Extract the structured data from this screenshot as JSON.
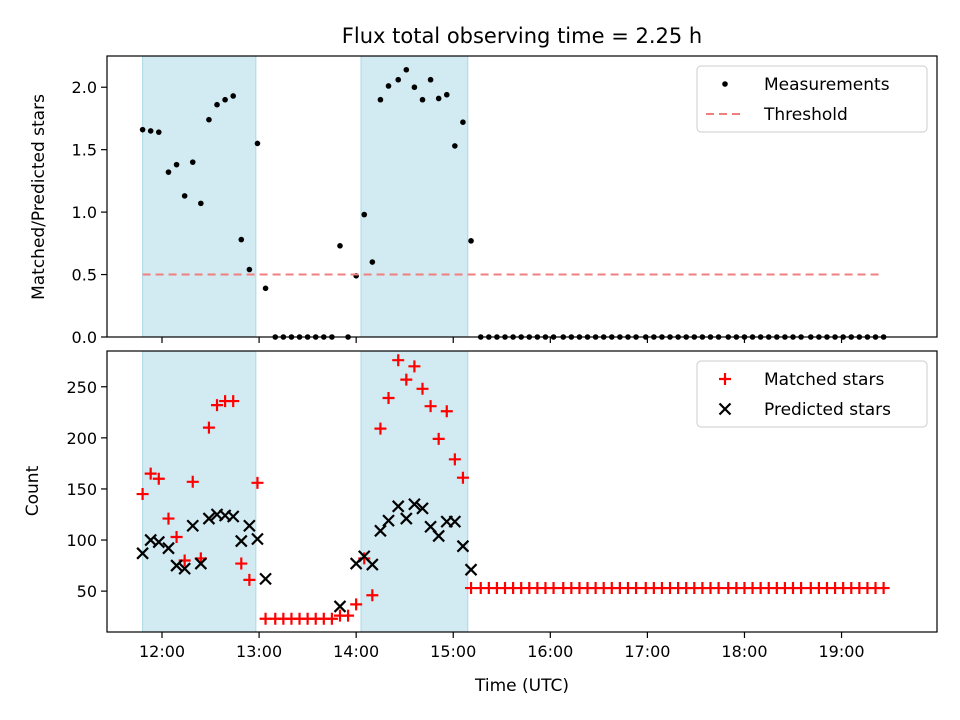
{
  "chart_data": [
    {
      "type": "scatter",
      "title": "Flux total observing time = 2.25 h",
      "xlabel": "",
      "ylabel": "Matched/Predicted stars",
      "ylim": [
        0,
        2.25
      ],
      "yticks": [
        {
          "v": 0.0,
          "label": "0.0"
        },
        {
          "v": 0.5,
          "label": "0.5"
        },
        {
          "v": 1.0,
          "label": "1.0"
        },
        {
          "v": 1.5,
          "label": "1.5"
        },
        {
          "v": 2.0,
          "label": "2.0"
        }
      ],
      "legend_position": "top-right",
      "colors": {
        "measurements": "#000000",
        "threshold": "#f08080",
        "shade": "#add8e6"
      },
      "series": [
        {
          "name": "Measurements",
          "marker": "dot",
          "points": [
            [
              "11:48",
              1.66
            ],
            [
              "11:53",
              1.65
            ],
            [
              "11:58",
              1.64
            ],
            [
              "12:04",
              1.32
            ],
            [
              "12:09",
              1.38
            ],
            [
              "12:14",
              1.13
            ],
            [
              "12:19",
              1.4
            ],
            [
              "12:24",
              1.07
            ],
            [
              "12:29",
              1.74
            ],
            [
              "12:34",
              1.86
            ],
            [
              "12:39",
              1.9
            ],
            [
              "12:44",
              1.93
            ],
            [
              "12:49",
              0.78
            ],
            [
              "12:54",
              0.54
            ],
            [
              "12:59",
              1.55
            ],
            [
              "13:04",
              0.39
            ],
            [
              "13:10",
              0.0
            ],
            [
              "13:15",
              0.0
            ],
            [
              "13:20",
              0.0
            ],
            [
              "13:25",
              0.0
            ],
            [
              "13:30",
              0.0
            ],
            [
              "13:35",
              0.0
            ],
            [
              "13:40",
              0.0
            ],
            [
              "13:45",
              0.0
            ],
            [
              "13:50",
              0.73
            ],
            [
              "13:55",
              0.0
            ],
            [
              "14:00",
              0.49
            ],
            [
              "14:05",
              0.98
            ],
            [
              "14:10",
              0.6
            ],
            [
              "14:15",
              1.9
            ],
            [
              "14:20",
              2.01
            ],
            [
              "14:26",
              2.06
            ],
            [
              "14:31",
              2.14
            ],
            [
              "14:36",
              2.0
            ],
            [
              "14:41",
              1.9
            ],
            [
              "14:46",
              2.06
            ],
            [
              "14:51",
              1.91
            ],
            [
              "14:56",
              1.94
            ],
            [
              "15:01",
              1.53
            ],
            [
              "15:06",
              1.72
            ],
            [
              "15:11",
              0.77
            ],
            [
              "15:17",
              0.0
            ],
            [
              "15:22",
              0.0
            ],
            [
              "15:27",
              0.0
            ],
            [
              "15:32",
              0.0
            ],
            [
              "15:37",
              0.0
            ],
            [
              "15:42",
              0.0
            ],
            [
              "15:47",
              0.0
            ],
            [
              "15:52",
              0.0
            ],
            [
              "15:57",
              0.0
            ],
            [
              "16:02",
              0.0
            ],
            [
              "16:08",
              0.0
            ],
            [
              "16:13",
              0.0
            ],
            [
              "16:18",
              0.0
            ],
            [
              "16:23",
              0.0
            ],
            [
              "16:28",
              0.0
            ],
            [
              "16:33",
              0.0
            ],
            [
              "16:38",
              0.0
            ],
            [
              "16:43",
              0.0
            ],
            [
              "16:48",
              0.0
            ],
            [
              "16:53",
              0.0
            ],
            [
              "16:59",
              0.0
            ],
            [
              "17:04",
              0.0
            ],
            [
              "17:09",
              0.0
            ],
            [
              "17:14",
              0.0
            ],
            [
              "17:19",
              0.0
            ],
            [
              "17:24",
              0.0
            ],
            [
              "17:29",
              0.0
            ],
            [
              "17:34",
              0.0
            ],
            [
              "17:39",
              0.0
            ],
            [
              "17:44",
              0.0
            ],
            [
              "17:50",
              0.0
            ],
            [
              "17:55",
              0.0
            ],
            [
              "18:00",
              0.0
            ],
            [
              "18:05",
              0.0
            ],
            [
              "18:10",
              0.0
            ],
            [
              "18:15",
              0.0
            ],
            [
              "18:20",
              0.0
            ],
            [
              "18:25",
              0.0
            ],
            [
              "18:30",
              0.0
            ],
            [
              "18:35",
              0.0
            ],
            [
              "18:41",
              0.0
            ],
            [
              "18:46",
              0.0
            ],
            [
              "18:51",
              0.0
            ],
            [
              "18:56",
              0.0
            ],
            [
              "19:01",
              0.0
            ],
            [
              "19:06",
              0.0
            ],
            [
              "19:11",
              0.0
            ],
            [
              "19:16",
              0.0
            ],
            [
              "19:21",
              0.0
            ],
            [
              "19:26",
              0.0
            ]
          ]
        },
        {
          "name": "Threshold",
          "marker": "dashed-line",
          "points": [
            [
              "11:48",
              0.5
            ],
            [
              "19:26",
              0.5
            ]
          ]
        }
      ],
      "shaded_intervals": [
        [
          "11:48",
          "12:58"
        ],
        [
          "14:03",
          "15:09"
        ]
      ]
    },
    {
      "type": "scatter",
      "title": "",
      "xlabel": "Time (UTC)",
      "ylabel": "Count",
      "ylim": [
        10,
        285
      ],
      "yticks": [
        {
          "v": 50,
          "label": "50"
        },
        {
          "v": 100,
          "label": "100"
        },
        {
          "v": 150,
          "label": "150"
        },
        {
          "v": 200,
          "label": "200"
        },
        {
          "v": 250,
          "label": "250"
        }
      ],
      "xlim": [
        "11:26",
        "19:59"
      ],
      "xticks": [
        "12:00",
        "13:00",
        "14:00",
        "15:00",
        "16:00",
        "17:00",
        "18:00",
        "19:00"
      ],
      "legend_position": "top-right",
      "colors": {
        "matched": "#ff0000",
        "predicted": "#000000",
        "shade": "#add8e6"
      },
      "series": [
        {
          "name": "Matched stars",
          "marker": "plus",
          "points": [
            [
              "11:48",
              145
            ],
            [
              "11:53",
              165
            ],
            [
              "11:58",
              160
            ],
            [
              "12:04",
              121
            ],
            [
              "12:09",
              103
            ],
            [
              "12:14",
              80
            ],
            [
              "12:19",
              157
            ],
            [
              "12:24",
              82
            ],
            [
              "12:29",
              210
            ],
            [
              "12:34",
              232
            ],
            [
              "12:39",
              236
            ],
            [
              "12:44",
              236
            ],
            [
              "12:49",
              77
            ],
            [
              "12:54",
              61
            ],
            [
              "12:59",
              156
            ],
            [
              "13:04",
              23
            ],
            [
              "13:10",
              23
            ],
            [
              "13:15",
              23
            ],
            [
              "13:20",
              23
            ],
            [
              "13:25",
              23
            ],
            [
              "13:30",
              23
            ],
            [
              "13:35",
              23
            ],
            [
              "13:40",
              23
            ],
            [
              "13:45",
              23
            ],
            [
              "13:50",
              26
            ],
            [
              "13:55",
              26
            ],
            [
              "14:00",
              37
            ],
            [
              "14:05",
              82
            ],
            [
              "14:10",
              46
            ],
            [
              "14:15",
              209
            ],
            [
              "14:20",
              239
            ],
            [
              "14:26",
              276
            ],
            [
              "14:31",
              257
            ],
            [
              "14:36",
              270
            ],
            [
              "14:41",
              248
            ],
            [
              "14:46",
              231
            ],
            [
              "14:51",
              199
            ],
            [
              "14:56",
              226
            ],
            [
              "15:01",
              179
            ],
            [
              "15:06",
              161
            ],
            [
              "15:11",
              53
            ],
            [
              "15:17",
              53
            ],
            [
              "15:22",
              53
            ],
            [
              "15:27",
              53
            ],
            [
              "15:32",
              53
            ],
            [
              "15:37",
              53
            ],
            [
              "15:42",
              53
            ],
            [
              "15:47",
              53
            ],
            [
              "15:52",
              53
            ],
            [
              "15:57",
              53
            ],
            [
              "16:02",
              53
            ],
            [
              "16:08",
              53
            ],
            [
              "16:13",
              53
            ],
            [
              "16:18",
              53
            ],
            [
              "16:23",
              53
            ],
            [
              "16:28",
              53
            ],
            [
              "16:33",
              53
            ],
            [
              "16:38",
              53
            ],
            [
              "16:43",
              53
            ],
            [
              "16:48",
              53
            ],
            [
              "16:53",
              53
            ],
            [
              "16:59",
              53
            ],
            [
              "17:04",
              53
            ],
            [
              "17:09",
              53
            ],
            [
              "17:14",
              53
            ],
            [
              "17:19",
              53
            ],
            [
              "17:24",
              53
            ],
            [
              "17:29",
              53
            ],
            [
              "17:34",
              53
            ],
            [
              "17:39",
              53
            ],
            [
              "17:44",
              53
            ],
            [
              "17:50",
              53
            ],
            [
              "17:55",
              53
            ],
            [
              "18:00",
              53
            ],
            [
              "18:05",
              53
            ],
            [
              "18:10",
              53
            ],
            [
              "18:15",
              53
            ],
            [
              "18:20",
              53
            ],
            [
              "18:25",
              53
            ],
            [
              "18:30",
              53
            ],
            [
              "18:35",
              53
            ],
            [
              "18:41",
              53
            ],
            [
              "18:46",
              53
            ],
            [
              "18:51",
              53
            ],
            [
              "18:56",
              53
            ],
            [
              "19:01",
              53
            ],
            [
              "19:06",
              53
            ],
            [
              "19:11",
              53
            ],
            [
              "19:16",
              53
            ],
            [
              "19:21",
              53
            ],
            [
              "19:26",
              53
            ]
          ]
        },
        {
          "name": "Predicted stars",
          "marker": "x",
          "points": [
            [
              "11:48",
              87
            ],
            [
              "11:53",
              100
            ],
            [
              "11:58",
              98
            ],
            [
              "12:04",
              92
            ],
            [
              "12:09",
              75
            ],
            [
              "12:14",
              72
            ],
            [
              "12:19",
              114
            ],
            [
              "12:24",
              77
            ],
            [
              "12:29",
              121
            ],
            [
              "12:34",
              125
            ],
            [
              "12:39",
              124
            ],
            [
              "12:44",
              123
            ],
            [
              "12:49",
              99
            ],
            [
              "12:54",
              114
            ],
            [
              "12:59",
              101
            ],
            [
              "13:04",
              62
            ],
            [
              "13:50",
              35
            ],
            [
              "14:00",
              77
            ],
            [
              "14:05",
              84
            ],
            [
              "14:10",
              76
            ],
            [
              "14:15",
              109
            ],
            [
              "14:20",
              119
            ],
            [
              "14:26",
              133
            ],
            [
              "14:31",
              121
            ],
            [
              "14:36",
              135
            ],
            [
              "14:41",
              131
            ],
            [
              "14:46",
              113
            ],
            [
              "14:51",
              104
            ],
            [
              "14:56",
              118
            ],
            [
              "15:01",
              118
            ],
            [
              "15:06",
              94
            ],
            [
              "15:11",
              71
            ]
          ]
        }
      ],
      "shaded_intervals": [
        [
          "11:48",
          "12:58"
        ],
        [
          "14:03",
          "15:09"
        ]
      ]
    }
  ]
}
